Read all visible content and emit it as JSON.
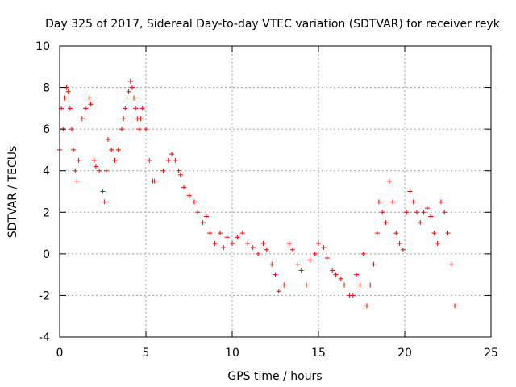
{
  "chart_data": {
    "type": "scatter",
    "title": "Day 325 of 2017, Sidereal Day-to-day VTEC variation (SDTVAR) for receiver reyk",
    "xlabel": "GPS time / hours",
    "ylabel": "SDTVAR / TECUs",
    "xlim": [
      0,
      25
    ],
    "ylim": [
      -4,
      10
    ],
    "x_ticks": [
      0,
      5,
      10,
      15,
      20,
      25
    ],
    "y_ticks": [
      -4,
      -2,
      0,
      2,
      4,
      6,
      8,
      10
    ],
    "x_tick_labels": [
      "0",
      "5",
      "10",
      "15",
      "20",
      "25"
    ],
    "y_tick_labels": [
      "-4",
      "-2",
      "0",
      "2",
      "4",
      "6",
      "8",
      "10"
    ],
    "grid": true,
    "marker": "+",
    "color": "#ff0000",
    "series": [
      {
        "name": "SDTVAR",
        "x": [
          0.0,
          0.1,
          0.2,
          0.3,
          0.4,
          0.5,
          0.6,
          0.7,
          0.8,
          0.9,
          1.0,
          1.1,
          1.3,
          1.5,
          1.7,
          1.8,
          2.0,
          2.1,
          2.3,
          2.5,
          2.6,
          2.7,
          2.8,
          3.0,
          3.2,
          3.4,
          3.6,
          3.7,
          3.8,
          3.9,
          4.0,
          4.1,
          4.2,
          4.3,
          4.4,
          4.5,
          4.6,
          4.7,
          4.8,
          5.0,
          5.2,
          5.4,
          5.5,
          6.0,
          6.3,
          6.5,
          6.7,
          6.9,
          7.0,
          7.2,
          7.5,
          7.8,
          8.0,
          8.3,
          8.5,
          8.7,
          9.0,
          9.3,
          9.5,
          9.7,
          10.0,
          10.3,
          10.6,
          10.9,
          11.2,
          11.5,
          11.8,
          12.0,
          12.3,
          12.5,
          12.7,
          13.0,
          13.3,
          13.5,
          13.8,
          14.0,
          14.3,
          14.5,
          14.8,
          15.0,
          15.3,
          15.5,
          15.8,
          16.0,
          16.3,
          16.5,
          16.8,
          17.0,
          17.2,
          17.4,
          17.6,
          17.8,
          18.0,
          18.2,
          18.4,
          18.5,
          18.7,
          18.9,
          19.1,
          19.3,
          19.5,
          19.7,
          19.9,
          20.1,
          20.3,
          20.5,
          20.7,
          20.9,
          21.1,
          21.3,
          21.5,
          21.7,
          21.9,
          22.1,
          22.3,
          22.5,
          22.7,
          22.9
        ],
        "y": [
          5.0,
          7.0,
          6.0,
          7.5,
          8.0,
          7.8,
          7.0,
          6.0,
          5.0,
          4.0,
          3.5,
          4.5,
          6.5,
          7.0,
          7.5,
          7.2,
          4.5,
          4.2,
          4.0,
          3.0,
          2.5,
          4.0,
          5.5,
          5.0,
          4.5,
          5.0,
          6.0,
          6.5,
          7.0,
          7.5,
          7.8,
          8.3,
          8.0,
          7.5,
          7.0,
          6.5,
          6.0,
          6.5,
          7.0,
          6.0,
          4.5,
          3.5,
          3.5,
          4.0,
          4.5,
          4.8,
          4.5,
          4.0,
          3.8,
          3.2,
          2.8,
          2.5,
          2.0,
          1.5,
          1.8,
          1.0,
          0.5,
          1.0,
          0.3,
          0.8,
          0.5,
          0.8,
          1.0,
          0.5,
          0.3,
          0.0,
          0.5,
          0.2,
          -0.5,
          -1.0,
          -1.8,
          -1.5,
          0.5,
          0.2,
          -0.5,
          -0.8,
          -1.5,
          -0.3,
          0.0,
          0.5,
          0.3,
          -0.2,
          -0.8,
          -1.0,
          -1.2,
          -1.5,
          -2.0,
          -2.0,
          -1.0,
          -1.5,
          0.0,
          -2.5,
          -1.5,
          -0.5,
          1.0,
          2.5,
          2.0,
          1.5,
          3.5,
          2.5,
          1.0,
          0.5,
          0.2,
          2.0,
          3.0,
          2.5,
          2.0,
          1.5,
          2.0,
          2.2,
          1.8,
          1.0,
          0.5,
          2.5,
          2.0,
          1.0,
          -0.5,
          -2.5
        ]
      }
    ]
  }
}
